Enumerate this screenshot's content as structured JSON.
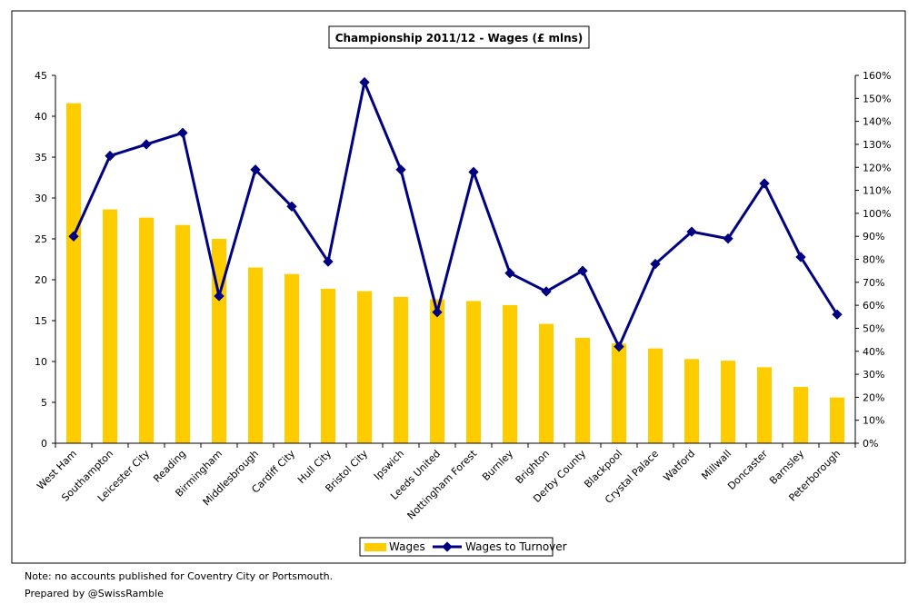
{
  "chart_data": {
    "type": "bar+line",
    "title": "Championship 2011/12 - Wages (£ mlns)",
    "categories": [
      "West Ham",
      "Southampton",
      "Leicester City",
      "Reading",
      "Birmingham",
      "Middlesbrough",
      "Cardiff City",
      "Hull City",
      "Bristol City",
      "Ipswich",
      "Leeds United",
      "Nottingham Forest",
      "Burnley",
      "Brighton",
      "Derby County",
      "Blackpool",
      "Crystal Palace",
      "Watford",
      "Millwall",
      "Doncaster",
      "Barnsley",
      "Peterborough"
    ],
    "series": [
      {
        "name": "Wages",
        "type": "bar",
        "axis": "left",
        "color": "#ffcc00",
        "values": [
          41.6,
          28.6,
          27.6,
          26.7,
          25.0,
          21.5,
          20.7,
          18.9,
          18.6,
          17.9,
          17.6,
          17.4,
          16.9,
          14.6,
          12.9,
          12.2,
          11.6,
          10.3,
          10.1,
          9.3,
          6.9,
          5.6
        ]
      },
      {
        "name": "Wages to Turnover",
        "type": "line",
        "axis": "right",
        "color": "#000080",
        "values": [
          90,
          125,
          130,
          135,
          64,
          119,
          103,
          79,
          157,
          119,
          57,
          118,
          74,
          66,
          75,
          42,
          78,
          92,
          89,
          113,
          81,
          56
        ]
      }
    ],
    "y_left": {
      "min": 0,
      "max": 45,
      "ticks": [
        "0",
        "5",
        "10",
        "15",
        "20",
        "25",
        "30",
        "35",
        "40",
        "45"
      ]
    },
    "y_right": {
      "min": 0,
      "max": 160,
      "ticks": [
        "0%",
        "10%",
        "20%",
        "30%",
        "40%",
        "50%",
        "60%",
        "70%",
        "80%",
        "90%",
        "100%",
        "110%",
        "120%",
        "130%",
        "140%",
        "150%",
        "160%"
      ]
    },
    "grid": false,
    "legend_position": "bottom"
  },
  "notes": {
    "line1": "Note: no accounts published for Coventry City or Portsmouth.",
    "line2": "Prepared by @SwissRamble"
  }
}
